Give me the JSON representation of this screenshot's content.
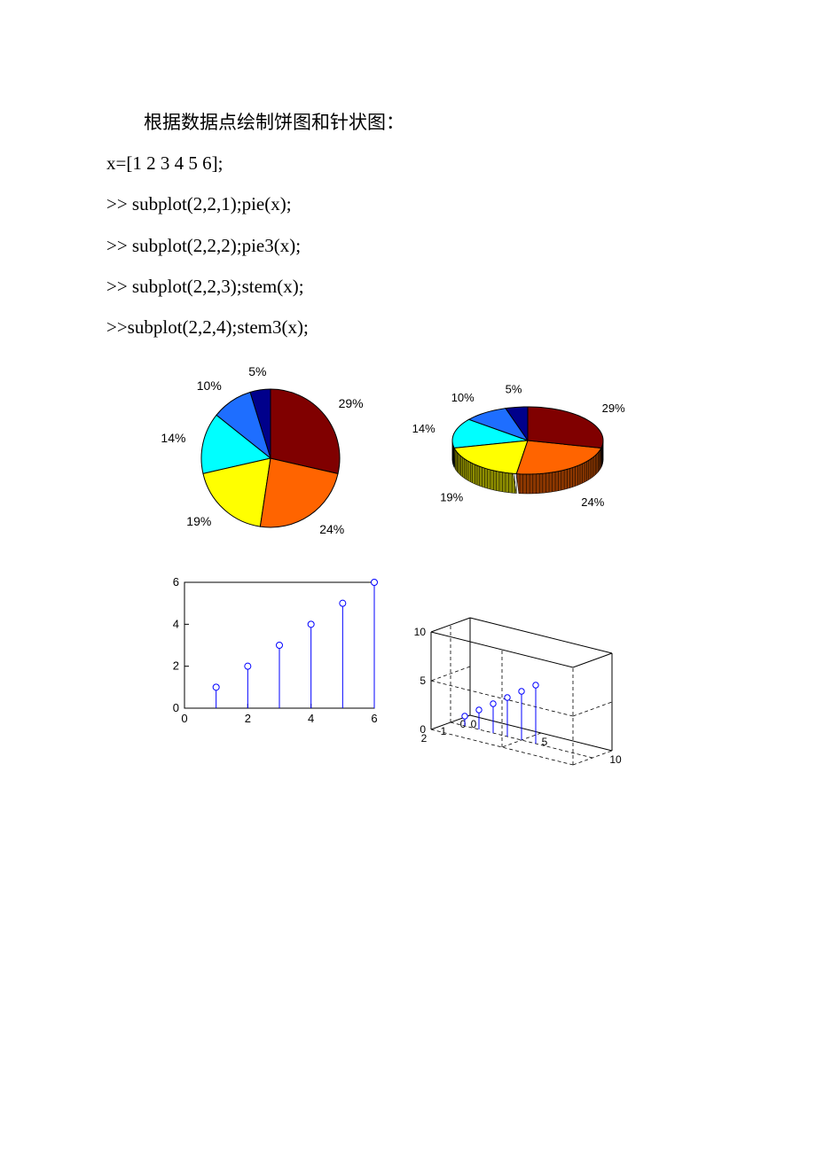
{
  "text": {
    "intro": "根据数据点绘制饼图和针状图：",
    "line1": "x=[1 2 3 4 5 6];",
    "line2": ">> subplot(2,2,1);pie(x);",
    "line3": ">> subplot(2,2,2);pie3(x);",
    "line4": ">> subplot(2,2,3);stem(x);",
    "line5": ">>subplot(2,2,4);stem3(x);"
  },
  "pie": {
    "values": [
      1,
      2,
      3,
      4,
      5,
      6
    ],
    "labels": [
      "5%",
      "10%",
      "14%",
      "19%",
      "24%",
      "29%"
    ],
    "colors": [
      "#00008b",
      "#1e6eff",
      "#00ffff",
      "#ffff00",
      "#ff6400",
      "#800000"
    ],
    "edge_color": "#000000"
  },
  "pie3d": {
    "values": [
      1,
      2,
      3,
      4,
      5,
      6
    ],
    "labels": [
      "5%",
      "10%",
      "14%",
      "19%",
      "24%",
      "29%"
    ],
    "colors": [
      "#00008b",
      "#1e6eff",
      "#00ffff",
      "#ffff00",
      "#ff6400",
      "#800000"
    ],
    "edge_color": "#000000",
    "depth": 22
  },
  "stem": {
    "x": [
      1,
      2,
      3,
      4,
      5,
      6
    ],
    "y": [
      1,
      2,
      3,
      4,
      5,
      6
    ],
    "xlim": [
      0,
      6
    ],
    "ylim": [
      0,
      6
    ],
    "xticks": [
      0,
      2,
      4,
      6
    ],
    "yticks": [
      0,
      2,
      4,
      6
    ],
    "line_color": "#0000ff",
    "marker_edge": "#0000ff",
    "marker_fill": "none",
    "marker_radius": 3.5,
    "axis_color": "#000000",
    "tick_fontsize": 13
  },
  "stem3": {
    "x": [
      1,
      2,
      3,
      4,
      5,
      6
    ],
    "y_axis": {
      "ticks": [
        0,
        1,
        2
      ],
      "range": [
        0,
        2
      ]
    },
    "x_axis": {
      "ticks": [
        0,
        5,
        10
      ],
      "range": [
        0,
        10
      ]
    },
    "z_axis": {
      "ticks": [
        0,
        5,
        10
      ],
      "range": [
        0,
        10
      ]
    },
    "line_color": "#0000ff",
    "marker_edge": "#0000ff",
    "axis_color": "#000000",
    "grid_color": "#808080",
    "tick_fontsize": 12
  }
}
